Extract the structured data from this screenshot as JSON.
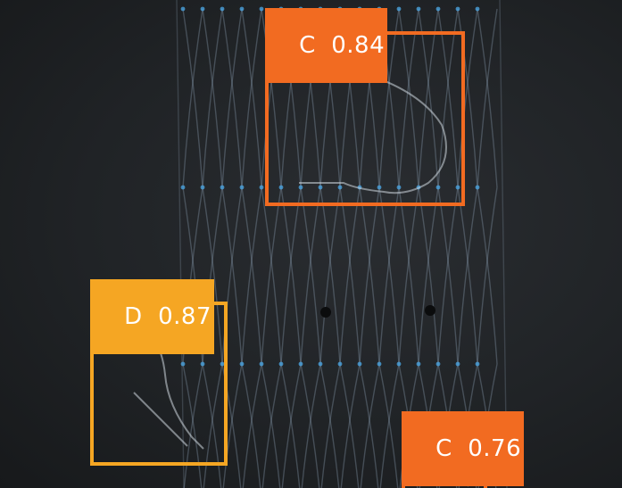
{
  "detections": [
    {
      "class": "C",
      "score": "0.84",
      "color": "#f26b21"
    },
    {
      "class": "D",
      "score": "0.87",
      "color": "#f5a623"
    },
    {
      "class": "C",
      "score": "0.76",
      "color": "#f26b21"
    }
  ]
}
